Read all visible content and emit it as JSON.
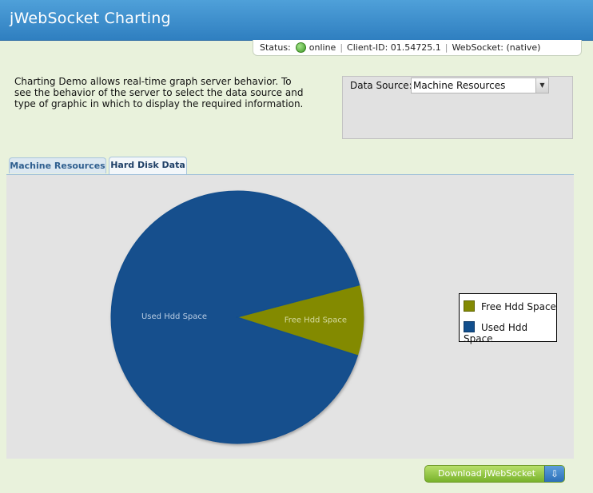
{
  "app": {
    "title": "jWebSocket Charting"
  },
  "status": {
    "label": "Status:",
    "state": "online",
    "client_label": "Client-ID:",
    "client_id": "01.54725.1",
    "ws_label": "WebSocket:",
    "ws_mode": "(native)"
  },
  "description": "Charting Demo allows real-time graph server behavior. To see the behavior of the server to select the data source and type of graphic in which to display the required information.",
  "data_source": {
    "label": "Data Source:",
    "selected": "Machine Resources"
  },
  "tabs": [
    {
      "label": "Machine Resources",
      "active": false
    },
    {
      "label": "Hard Disk Data",
      "active": true
    }
  ],
  "chart_data": {
    "type": "pie",
    "labels": [
      "Free Hdd Space",
      "Used Hdd Space"
    ],
    "values": [
      9,
      91
    ],
    "colors": [
      "#838a03",
      "#124f8d"
    ],
    "legend": "right"
  },
  "legend": {
    "items": [
      {
        "label": "Free Hdd Space",
        "color": "#838a03"
      },
      {
        "label": "Used Hdd Space",
        "color": "#124f8d"
      }
    ]
  },
  "download": {
    "label": "Download jWebSocket"
  }
}
